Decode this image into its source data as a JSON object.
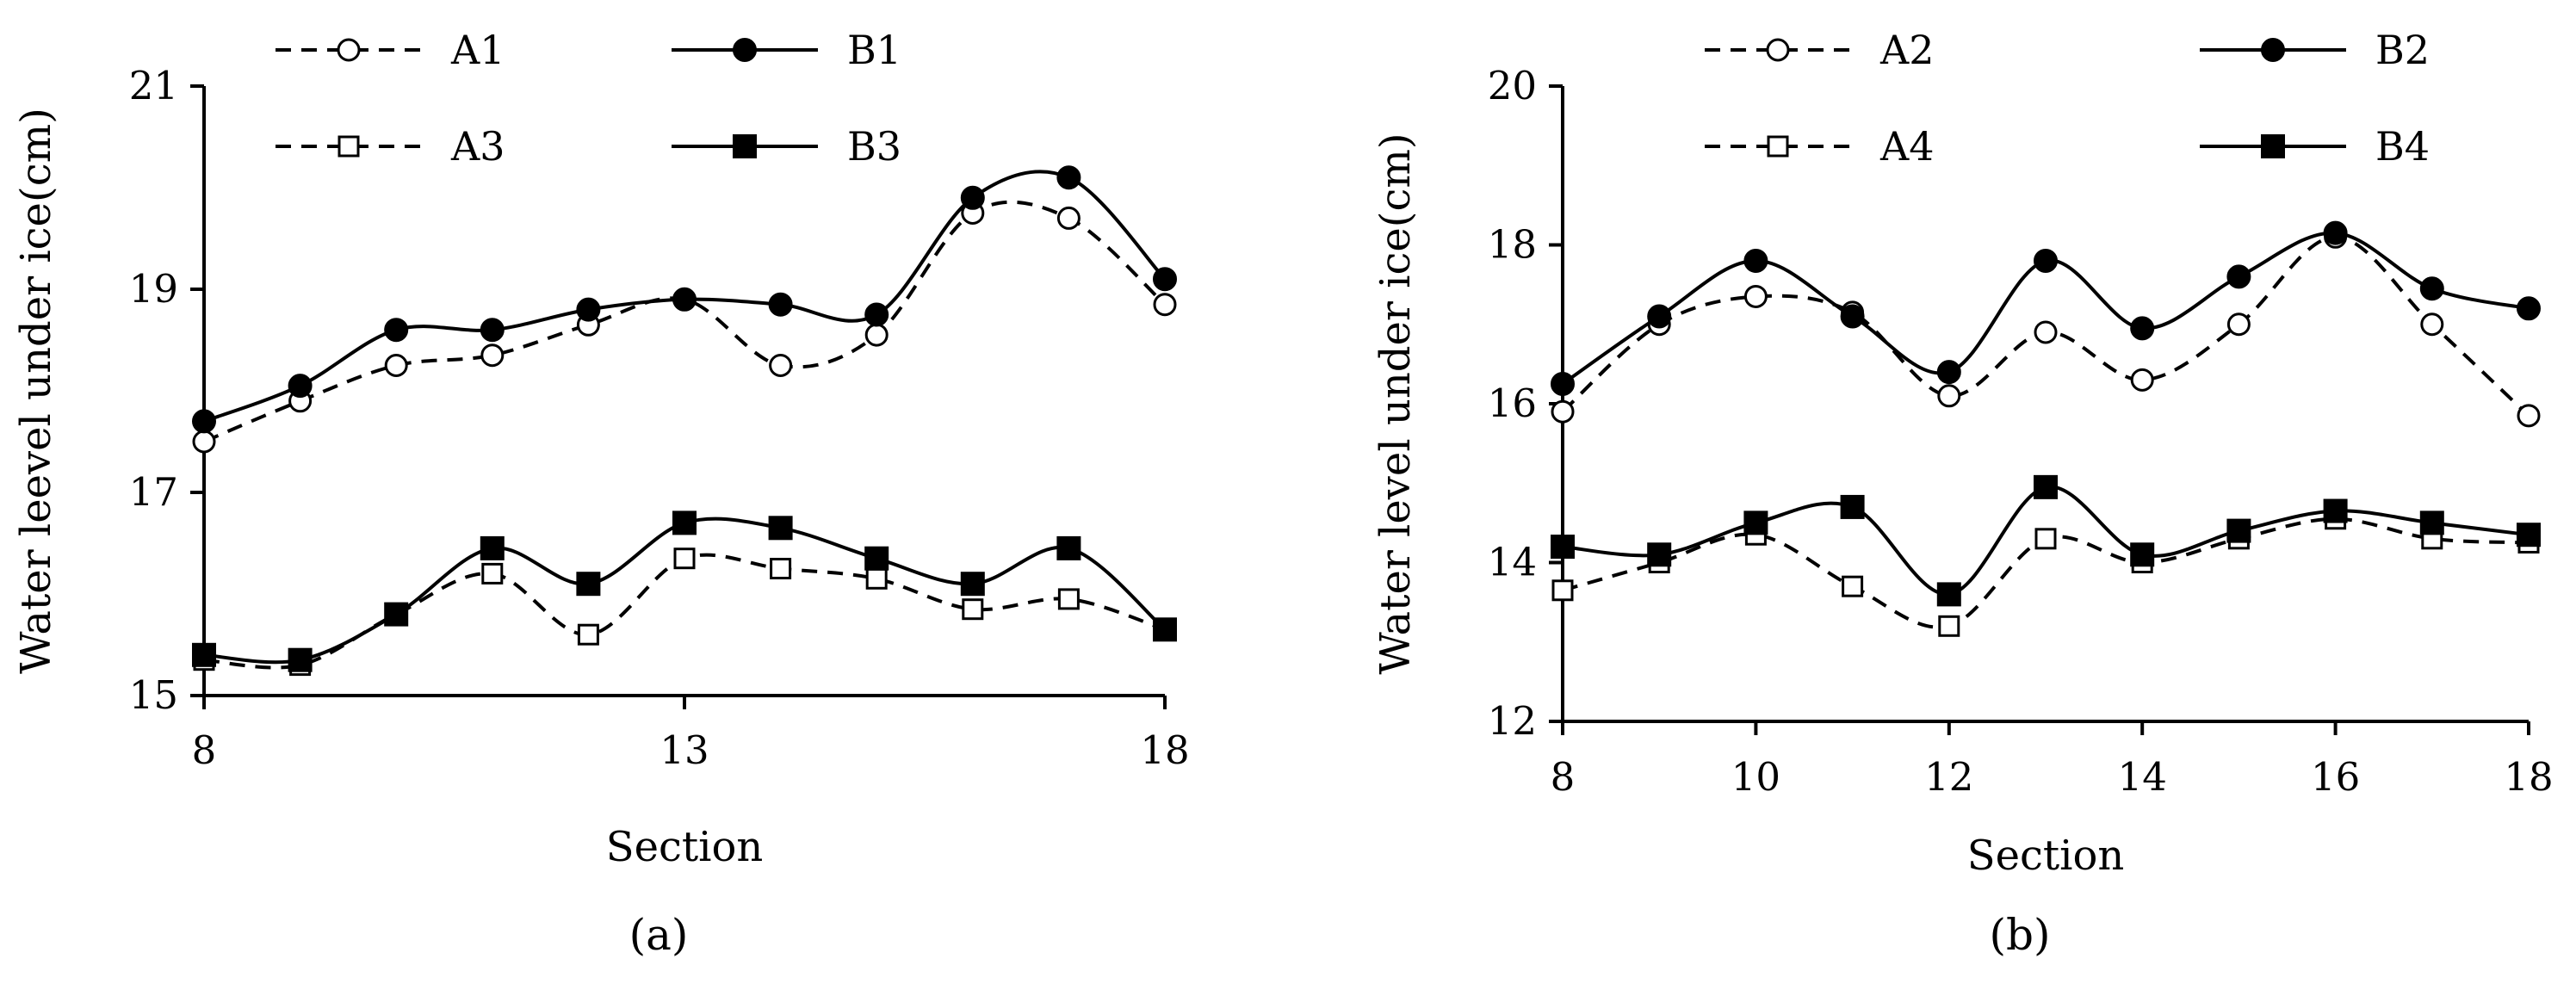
{
  "chart_data": [
    {
      "panel": "(a)",
      "type": "line",
      "caption": "(a)",
      "xlabel": "Section",
      "ylabel": "Water leevel under ice(cm)",
      "xlim": [
        8,
        18
      ],
      "ylim": [
        15,
        21
      ],
      "xticks": [
        8,
        13,
        18
      ],
      "yticks": [
        15,
        17,
        19,
        21
      ],
      "x": [
        8,
        9,
        10,
        11,
        12,
        13,
        14,
        15,
        16,
        17,
        18
      ],
      "series": [
        {
          "name": "A1",
          "marker": "open-circle",
          "dash": true,
          "values": [
            17.5,
            17.9,
            18.25,
            18.35,
            18.65,
            18.9,
            18.25,
            18.55,
            19.75,
            19.7,
            18.85
          ]
        },
        {
          "name": "B1",
          "marker": "filled-circle",
          "dash": false,
          "values": [
            17.7,
            18.05,
            18.6,
            18.6,
            18.8,
            18.9,
            18.85,
            18.75,
            19.9,
            20.1,
            19.1
          ]
        },
        {
          "name": "A3",
          "marker": "open-square",
          "dash": true,
          "values": [
            15.35,
            15.3,
            15.8,
            16.2,
            15.6,
            16.35,
            16.25,
            16.15,
            15.85,
            15.95,
            15.65
          ]
        },
        {
          "name": "B3",
          "marker": "filled-square",
          "dash": false,
          "values": [
            15.4,
            15.35,
            15.8,
            16.45,
            16.1,
            16.7,
            16.65,
            16.35,
            16.1,
            16.45,
            15.65
          ]
        }
      ]
    },
    {
      "panel": "(b)",
      "type": "line",
      "caption": "(b)",
      "xlabel": "Section",
      "ylabel": "Water level under ice(cm)",
      "xlim": [
        8,
        18
      ],
      "ylim": [
        12,
        20
      ],
      "xticks": [
        8,
        10,
        12,
        14,
        16,
        18
      ],
      "yticks": [
        12,
        14,
        16,
        18,
        20
      ],
      "x": [
        8,
        9,
        10,
        11,
        12,
        13,
        14,
        15,
        16,
        17,
        18
      ],
      "series": [
        {
          "name": "A2",
          "marker": "open-circle",
          "dash": true,
          "values": [
            15.9,
            17.0,
            17.35,
            17.15,
            16.1,
            16.9,
            16.3,
            17.0,
            18.1,
            17.0,
            15.85
          ]
        },
        {
          "name": "B2",
          "marker": "filled-circle",
          "dash": false,
          "values": [
            16.25,
            17.1,
            17.8,
            17.1,
            16.4,
            17.8,
            16.95,
            17.6,
            18.15,
            17.45,
            17.2
          ]
        },
        {
          "name": "A4",
          "marker": "open-square",
          "dash": true,
          "values": [
            13.65,
            14.0,
            14.35,
            13.7,
            13.2,
            14.3,
            14.0,
            14.3,
            14.55,
            14.3,
            14.25
          ]
        },
        {
          "name": "B4",
          "marker": "filled-square",
          "dash": false,
          "values": [
            14.2,
            14.1,
            14.5,
            14.7,
            13.6,
            14.95,
            14.1,
            14.4,
            14.65,
            14.5,
            14.35
          ]
        }
      ]
    }
  ]
}
